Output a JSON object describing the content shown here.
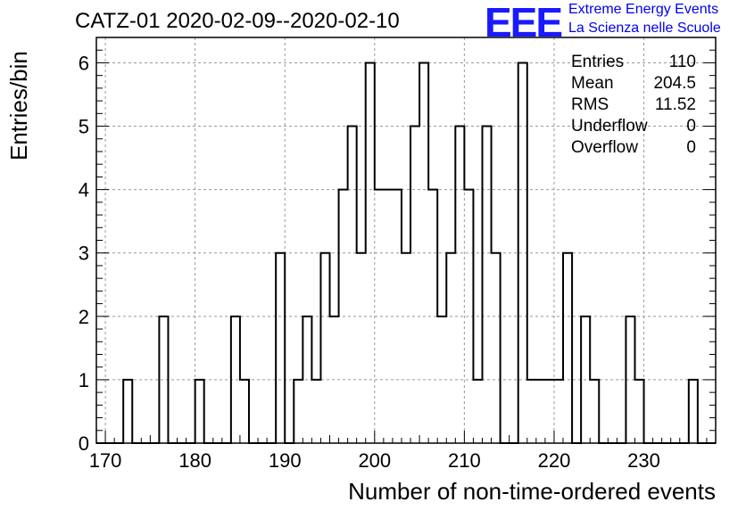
{
  "chart_data": {
    "type": "bar",
    "title": "CATZ-01 2020-02-09--2020-02-10",
    "xlabel": "Number of non-time-ordered events",
    "ylabel": "Entries/bin",
    "xlim": [
      169,
      238
    ],
    "ylim": [
      0,
      6.4
    ],
    "grid": true,
    "x_ticks": [
      170,
      180,
      190,
      200,
      210,
      220,
      230
    ],
    "y_ticks": [
      0,
      1,
      2,
      3,
      4,
      5,
      6
    ],
    "bin_width": 1,
    "bins": [
      {
        "x": 172,
        "value": 1
      },
      {
        "x": 176,
        "value": 2
      },
      {
        "x": 180,
        "value": 1
      },
      {
        "x": 184,
        "value": 2
      },
      {
        "x": 185,
        "value": 1
      },
      {
        "x": 189,
        "value": 3
      },
      {
        "x": 191,
        "value": 1
      },
      {
        "x": 192,
        "value": 2
      },
      {
        "x": 193,
        "value": 1
      },
      {
        "x": 194,
        "value": 3
      },
      {
        "x": 195,
        "value": 2
      },
      {
        "x": 196,
        "value": 4
      },
      {
        "x": 197,
        "value": 5
      },
      {
        "x": 198,
        "value": 3
      },
      {
        "x": 199,
        "value": 6
      },
      {
        "x": 200,
        "value": 4
      },
      {
        "x": 201,
        "value": 4
      },
      {
        "x": 202,
        "value": 4
      },
      {
        "x": 203,
        "value": 3
      },
      {
        "x": 204,
        "value": 5
      },
      {
        "x": 205,
        "value": 6
      },
      {
        "x": 206,
        "value": 4
      },
      {
        "x": 207,
        "value": 2
      },
      {
        "x": 208,
        "value": 3
      },
      {
        "x": 209,
        "value": 5
      },
      {
        "x": 210,
        "value": 4
      },
      {
        "x": 211,
        "value": 1
      },
      {
        "x": 212,
        "value": 5
      },
      {
        "x": 213,
        "value": 3
      },
      {
        "x": 216,
        "value": 6
      },
      {
        "x": 217,
        "value": 1
      },
      {
        "x": 218,
        "value": 1
      },
      {
        "x": 219,
        "value": 1
      },
      {
        "x": 220,
        "value": 1
      },
      {
        "x": 221,
        "value": 3
      },
      {
        "x": 223,
        "value": 2
      },
      {
        "x": 224,
        "value": 1
      },
      {
        "x": 228,
        "value": 2
      },
      {
        "x": 229,
        "value": 1
      },
      {
        "x": 235,
        "value": 1
      }
    ],
    "stats": [
      {
        "label": "Entries",
        "value": "110"
      },
      {
        "label": "Mean",
        "value": "204.5"
      },
      {
        "label": "RMS",
        "value": "11.52"
      },
      {
        "label": "Underflow",
        "value": "0"
      },
      {
        "label": "Overflow",
        "value": "0"
      }
    ]
  },
  "logo": {
    "mark": "EEE",
    "line1": "Extreme Energy Events",
    "line2": "La Scienza nelle Scuole"
  }
}
